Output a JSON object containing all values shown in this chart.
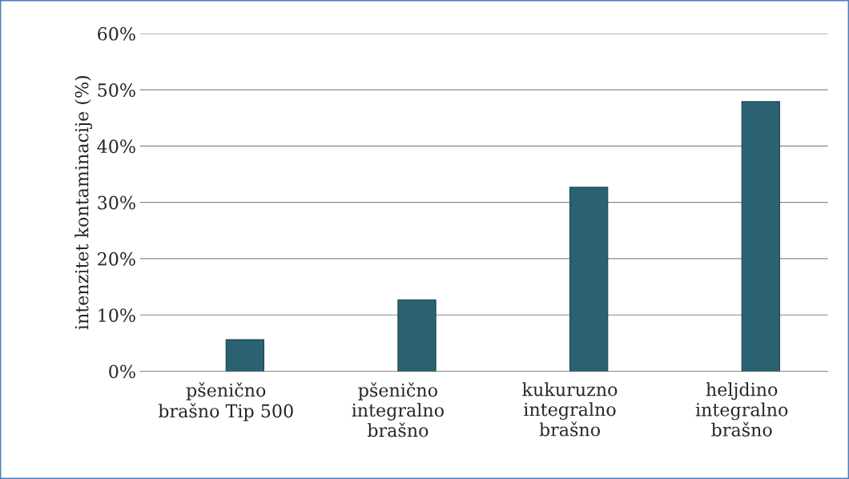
{
  "chart_data": {
    "type": "bar",
    "ylabel": "intenzitet kontaminacije (%)",
    "categories": [
      "pšenično\nbrašno Tip 500",
      "pšenično\nintegralno\nbrašno",
      "kukuruzno\nintegralno\nbrašno",
      "heljdino\nintegralno\nbrašno"
    ],
    "series": [
      {
        "values": [
          null,
          null,
          null,
          null
        ]
      },
      {
        "color": "#2a6272",
        "values": [
          5.6,
          12.7,
          32.7,
          47.9
        ]
      }
    ],
    "ylim": [
      0,
      60
    ],
    "yticks": [
      {
        "value": 0,
        "label": "0%"
      },
      {
        "value": 10,
        "label": "10%"
      },
      {
        "value": 20,
        "label": "20%"
      },
      {
        "value": 30,
        "label": "30%"
      },
      {
        "value": 40,
        "label": "40%"
      },
      {
        "value": 50,
        "label": "50%"
      },
      {
        "value": 60,
        "label": "60%"
      }
    ],
    "grid": "y"
  }
}
